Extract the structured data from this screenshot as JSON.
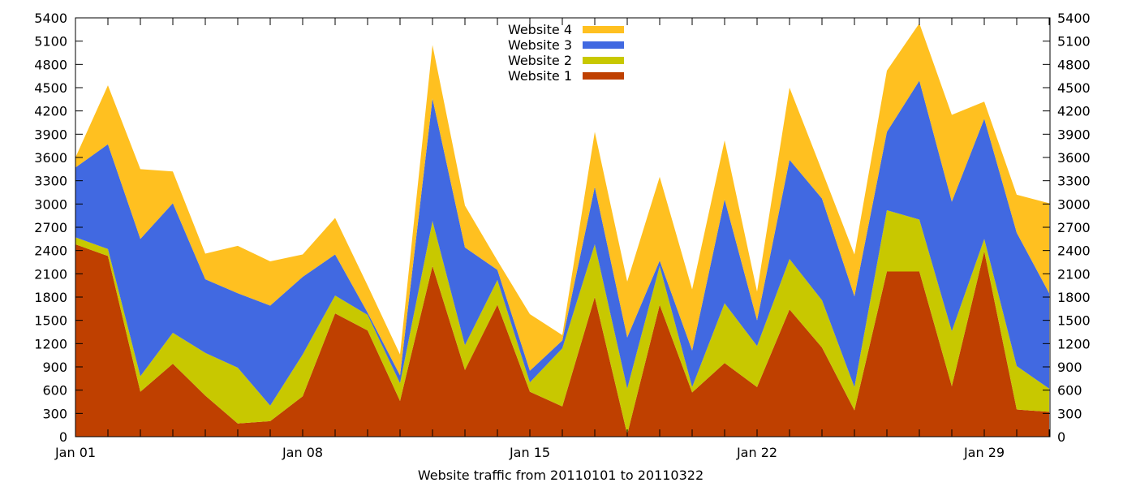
{
  "chart_data": {
    "type": "area",
    "stacked": true,
    "title": "",
    "xlabel": "Website traffic from 20110101 to 20110322",
    "ylabel": "",
    "x": [
      "Jan 01",
      "Jan 02",
      "Jan 03",
      "Jan 04",
      "Jan 05",
      "Jan 06",
      "Jan 07",
      "Jan 08",
      "Jan 09",
      "Jan 10",
      "Jan 11",
      "Jan 12",
      "Jan 13",
      "Jan 14",
      "Jan 15",
      "Jan 16",
      "Jan 17",
      "Jan 18",
      "Jan 19",
      "Jan 20",
      "Jan 21",
      "Jan 22",
      "Jan 23",
      "Jan 24",
      "Jan 25",
      "Jan 26",
      "Jan 27",
      "Jan 28",
      "Jan 29",
      "Jan 30",
      "Jan 31"
    ],
    "x_tick_labels": [
      "Jan 01",
      "Jan 08",
      "Jan 15",
      "Jan 22",
      "Jan 29"
    ],
    "ylim": [
      0,
      5400
    ],
    "y_ticks": [
      0,
      300,
      600,
      900,
      1200,
      1500,
      1800,
      2100,
      2400,
      2700,
      3000,
      3300,
      3600,
      3900,
      4200,
      4500,
      4800,
      5100,
      5400
    ],
    "grid": false,
    "legend_position": "top-center",
    "series": [
      {
        "name": "Website 1",
        "color": "#bf4000",
        "values": [
          2480,
          2330,
          580,
          940,
          530,
          170,
          200,
          520,
          1590,
          1370,
          460,
          2200,
          860,
          1700,
          580,
          390,
          1800,
          30,
          1700,
          570,
          950,
          640,
          1640,
          1150,
          340,
          2130,
          2130,
          650,
          2390,
          350,
          320
        ]
      },
      {
        "name": "Website 2",
        "color": "#c8c800",
        "values": [
          90,
          90,
          200,
          400,
          550,
          720,
          200,
          540,
          230,
          200,
          230,
          580,
          320,
          320,
          120,
          750,
          680,
          590,
          500,
          70,
          770,
          530,
          650,
          610,
          300,
          790,
          670,
          710,
          160,
          560,
          300
        ]
      },
      {
        "name": "Website 3",
        "color": "#4169e1",
        "values": [
          900,
          1350,
          1770,
          1670,
          950,
          960,
          1290,
          1000,
          530,
          30,
          100,
          1580,
          1260,
          130,
          150,
          100,
          740,
          660,
          70,
          470,
          1340,
          330,
          1280,
          1310,
          1170,
          1010,
          1790,
          1670,
          1550,
          1720,
          1230
        ]
      },
      {
        "name": "Website 4",
        "color": "#ffc020",
        "values": [
          130,
          760,
          900,
          410,
          330,
          610,
          570,
          290,
          470,
          350,
          270,
          690,
          540,
          120,
          730,
          70,
          710,
          720,
          1080,
          790,
          760,
          370,
          930,
          360,
          540,
          790,
          740,
          1120,
          220,
          490,
          1160
        ]
      }
    ]
  }
}
